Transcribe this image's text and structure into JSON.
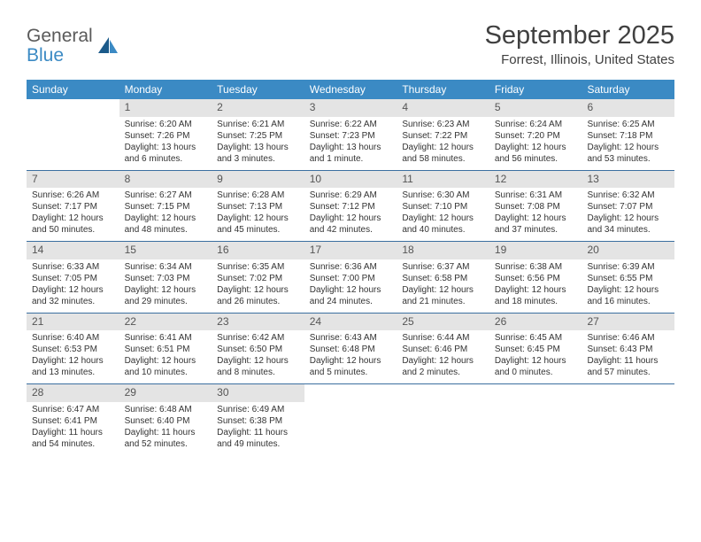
{
  "logo": {
    "line1": "General",
    "line2": "Blue"
  },
  "title": "September 2025",
  "location": "Forrest, Illinois, United States",
  "colors": {
    "header_bg": "#3b8ac4",
    "daynum_bg": "#e4e4e4",
    "rule": "#3b6fa0",
    "text": "#333333"
  },
  "weekdays": [
    "Sunday",
    "Monday",
    "Tuesday",
    "Wednesday",
    "Thursday",
    "Friday",
    "Saturday"
  ],
  "days": [
    {
      "n": "",
      "sr": "",
      "ss": "",
      "dl1": "",
      "dl2": ""
    },
    {
      "n": "1",
      "sr": "Sunrise: 6:20 AM",
      "ss": "Sunset: 7:26 PM",
      "dl1": "Daylight: 13 hours",
      "dl2": "and 6 minutes."
    },
    {
      "n": "2",
      "sr": "Sunrise: 6:21 AM",
      "ss": "Sunset: 7:25 PM",
      "dl1": "Daylight: 13 hours",
      "dl2": "and 3 minutes."
    },
    {
      "n": "3",
      "sr": "Sunrise: 6:22 AM",
      "ss": "Sunset: 7:23 PM",
      "dl1": "Daylight: 13 hours",
      "dl2": "and 1 minute."
    },
    {
      "n": "4",
      "sr": "Sunrise: 6:23 AM",
      "ss": "Sunset: 7:22 PM",
      "dl1": "Daylight: 12 hours",
      "dl2": "and 58 minutes."
    },
    {
      "n": "5",
      "sr": "Sunrise: 6:24 AM",
      "ss": "Sunset: 7:20 PM",
      "dl1": "Daylight: 12 hours",
      "dl2": "and 56 minutes."
    },
    {
      "n": "6",
      "sr": "Sunrise: 6:25 AM",
      "ss": "Sunset: 7:18 PM",
      "dl1": "Daylight: 12 hours",
      "dl2": "and 53 minutes."
    },
    {
      "n": "7",
      "sr": "Sunrise: 6:26 AM",
      "ss": "Sunset: 7:17 PM",
      "dl1": "Daylight: 12 hours",
      "dl2": "and 50 minutes."
    },
    {
      "n": "8",
      "sr": "Sunrise: 6:27 AM",
      "ss": "Sunset: 7:15 PM",
      "dl1": "Daylight: 12 hours",
      "dl2": "and 48 minutes."
    },
    {
      "n": "9",
      "sr": "Sunrise: 6:28 AM",
      "ss": "Sunset: 7:13 PM",
      "dl1": "Daylight: 12 hours",
      "dl2": "and 45 minutes."
    },
    {
      "n": "10",
      "sr": "Sunrise: 6:29 AM",
      "ss": "Sunset: 7:12 PM",
      "dl1": "Daylight: 12 hours",
      "dl2": "and 42 minutes."
    },
    {
      "n": "11",
      "sr": "Sunrise: 6:30 AM",
      "ss": "Sunset: 7:10 PM",
      "dl1": "Daylight: 12 hours",
      "dl2": "and 40 minutes."
    },
    {
      "n": "12",
      "sr": "Sunrise: 6:31 AM",
      "ss": "Sunset: 7:08 PM",
      "dl1": "Daylight: 12 hours",
      "dl2": "and 37 minutes."
    },
    {
      "n": "13",
      "sr": "Sunrise: 6:32 AM",
      "ss": "Sunset: 7:07 PM",
      "dl1": "Daylight: 12 hours",
      "dl2": "and 34 minutes."
    },
    {
      "n": "14",
      "sr": "Sunrise: 6:33 AM",
      "ss": "Sunset: 7:05 PM",
      "dl1": "Daylight: 12 hours",
      "dl2": "and 32 minutes."
    },
    {
      "n": "15",
      "sr": "Sunrise: 6:34 AM",
      "ss": "Sunset: 7:03 PM",
      "dl1": "Daylight: 12 hours",
      "dl2": "and 29 minutes."
    },
    {
      "n": "16",
      "sr": "Sunrise: 6:35 AM",
      "ss": "Sunset: 7:02 PM",
      "dl1": "Daylight: 12 hours",
      "dl2": "and 26 minutes."
    },
    {
      "n": "17",
      "sr": "Sunrise: 6:36 AM",
      "ss": "Sunset: 7:00 PM",
      "dl1": "Daylight: 12 hours",
      "dl2": "and 24 minutes."
    },
    {
      "n": "18",
      "sr": "Sunrise: 6:37 AM",
      "ss": "Sunset: 6:58 PM",
      "dl1": "Daylight: 12 hours",
      "dl2": "and 21 minutes."
    },
    {
      "n": "19",
      "sr": "Sunrise: 6:38 AM",
      "ss": "Sunset: 6:56 PM",
      "dl1": "Daylight: 12 hours",
      "dl2": "and 18 minutes."
    },
    {
      "n": "20",
      "sr": "Sunrise: 6:39 AM",
      "ss": "Sunset: 6:55 PM",
      "dl1": "Daylight: 12 hours",
      "dl2": "and 16 minutes."
    },
    {
      "n": "21",
      "sr": "Sunrise: 6:40 AM",
      "ss": "Sunset: 6:53 PM",
      "dl1": "Daylight: 12 hours",
      "dl2": "and 13 minutes."
    },
    {
      "n": "22",
      "sr": "Sunrise: 6:41 AM",
      "ss": "Sunset: 6:51 PM",
      "dl1": "Daylight: 12 hours",
      "dl2": "and 10 minutes."
    },
    {
      "n": "23",
      "sr": "Sunrise: 6:42 AM",
      "ss": "Sunset: 6:50 PM",
      "dl1": "Daylight: 12 hours",
      "dl2": "and 8 minutes."
    },
    {
      "n": "24",
      "sr": "Sunrise: 6:43 AM",
      "ss": "Sunset: 6:48 PM",
      "dl1": "Daylight: 12 hours",
      "dl2": "and 5 minutes."
    },
    {
      "n": "25",
      "sr": "Sunrise: 6:44 AM",
      "ss": "Sunset: 6:46 PM",
      "dl1": "Daylight: 12 hours",
      "dl2": "and 2 minutes."
    },
    {
      "n": "26",
      "sr": "Sunrise: 6:45 AM",
      "ss": "Sunset: 6:45 PM",
      "dl1": "Daylight: 12 hours",
      "dl2": "and 0 minutes."
    },
    {
      "n": "27",
      "sr": "Sunrise: 6:46 AM",
      "ss": "Sunset: 6:43 PM",
      "dl1": "Daylight: 11 hours",
      "dl2": "and 57 minutes."
    },
    {
      "n": "28",
      "sr": "Sunrise: 6:47 AM",
      "ss": "Sunset: 6:41 PM",
      "dl1": "Daylight: 11 hours",
      "dl2": "and 54 minutes."
    },
    {
      "n": "29",
      "sr": "Sunrise: 6:48 AM",
      "ss": "Sunset: 6:40 PM",
      "dl1": "Daylight: 11 hours",
      "dl2": "and 52 minutes."
    },
    {
      "n": "30",
      "sr": "Sunrise: 6:49 AM",
      "ss": "Sunset: 6:38 PM",
      "dl1": "Daylight: 11 hours",
      "dl2": "and 49 minutes."
    },
    {
      "n": "",
      "sr": "",
      "ss": "",
      "dl1": "",
      "dl2": ""
    },
    {
      "n": "",
      "sr": "",
      "ss": "",
      "dl1": "",
      "dl2": ""
    },
    {
      "n": "",
      "sr": "",
      "ss": "",
      "dl1": "",
      "dl2": ""
    },
    {
      "n": "",
      "sr": "",
      "ss": "",
      "dl1": "",
      "dl2": ""
    }
  ]
}
